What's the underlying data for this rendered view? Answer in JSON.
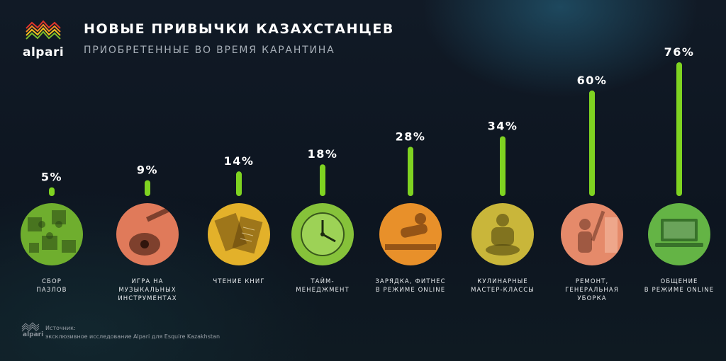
{
  "brand": {
    "name": "alpari",
    "footer_name": "alpari",
    "colors": [
      "#e0352b",
      "#f58a24",
      "#f7c21c",
      "#7bbd2a"
    ]
  },
  "header": {
    "title": "НОВЫЕ ПРИВЫЧКИ КАЗАХСТАНЦЕВ",
    "subtitle": "ПРИОБРЕТЕННЫЕ ВО ВРЕМЯ КАРАНТИНА"
  },
  "chart_data": {
    "type": "bar",
    "categories": [
      "СБОР\nПАЗЛОВ",
      "ИГРА НА\nМУЗЫКАЛЬНЫХ\nИНСТРУМЕНТАХ",
      "ЧТЕНИЕ КНИГ",
      "ТАЙМ-\nМЕНЕДЖМЕНТ",
      "ЗАРЯДКА, ФИТНЕС\nВ РЕЖИМЕ ONLINE",
      "КУЛИНАРНЫЕ\nМАСТЕР-КЛАССЫ",
      "РЕМОНТ,\nГЕНЕРАЛЬНАЯ\nУБОРКА",
      "ОБЩЕНИЕ\nВ РЕЖИМЕ ONLINE"
    ],
    "values": [
      5,
      9,
      14,
      18,
      28,
      34,
      60,
      76
    ],
    "value_labels": [
      "5%",
      "9%",
      "14%",
      "18%",
      "28%",
      "34%",
      "60%",
      "76%"
    ],
    "title": "НОВЫЕ ПРИВЫЧКИ КАЗАХСТАНЦЕВ",
    "subtitle": "ПРИОБРЕТЕННЫЕ ВО ВРЕМЯ КАРАНТИНА",
    "xlabel": "",
    "ylabel": "",
    "grid": false,
    "bar_color": "#7fd321",
    "photo_themes": [
      {
        "icon": "puzzle-icon",
        "tint": "#6fae2e"
      },
      {
        "icon": "guitar-icon",
        "tint": "#e07a5a"
      },
      {
        "icon": "book-icon",
        "tint": "#e3b12a"
      },
      {
        "icon": "clock-icon",
        "tint": "#86c23a"
      },
      {
        "icon": "fitness-icon",
        "tint": "#e8902a"
      },
      {
        "icon": "cooking-icon",
        "tint": "#c9b63a"
      },
      {
        "icon": "renovation-icon",
        "tint": "#e58a6a"
      },
      {
        "icon": "laptop-icon",
        "tint": "#64b445"
      }
    ]
  },
  "footer": {
    "source_label": "Источник:",
    "source_text": "эксклюзивное исследование Alpari для Esquire Kazakhstan"
  }
}
